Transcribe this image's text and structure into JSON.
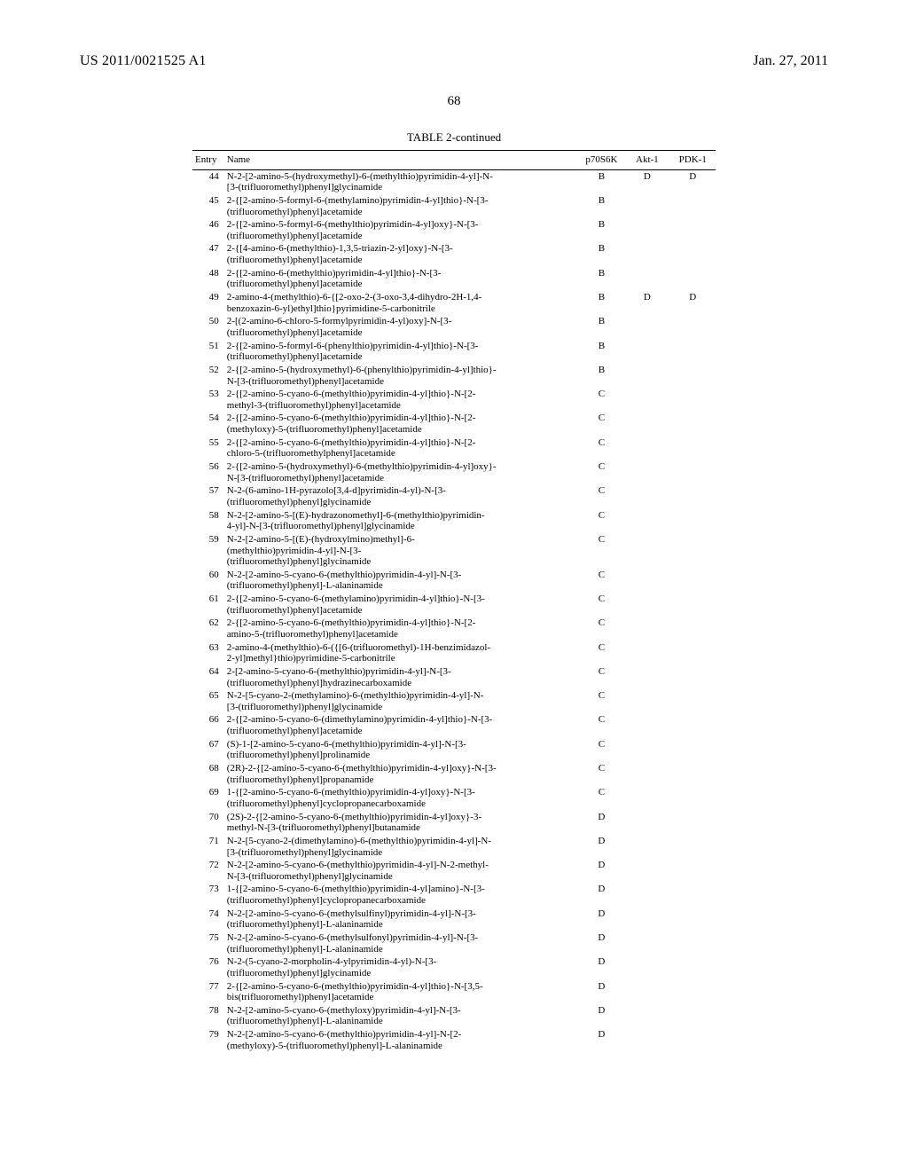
{
  "header": {
    "pub_num": "US 2011/0021525 A1",
    "pub_date": "Jan. 27, 2011"
  },
  "page_number": "68",
  "table": {
    "title": "TABLE 2-continued",
    "columns": [
      "Entry",
      "Name",
      "p70S6K",
      "Akt-1",
      "PDK-1"
    ],
    "rows": [
      {
        "entry": "44",
        "name": [
          "N-2-[2-amino-5-(hydroxymethyl)-6-(methylthio)pyrimidin-4-yl]-N-",
          "[3-(trifluoromethyl)phenyl]glycinamide"
        ],
        "p70s6k": "B",
        "akt1": "D",
        "pdk1": "D"
      },
      {
        "entry": "45",
        "name": [
          "2-{[2-amino-5-formyl-6-(methylamino)pyrimidin-4-yl]thio}-N-[3-",
          "(trifluoromethyl)phenyl]acetamide"
        ],
        "p70s6k": "B",
        "akt1": "",
        "pdk1": ""
      },
      {
        "entry": "46",
        "name": [
          "2-{[2-amino-5-formyl-6-(methylthio)pyrimidin-4-yl]oxy}-N-[3-",
          "(trifluoromethyl)phenyl]acetamide"
        ],
        "p70s6k": "B",
        "akt1": "",
        "pdk1": ""
      },
      {
        "entry": "47",
        "name": [
          "2-{[4-amino-6-(methylthio)-1,3,5-triazin-2-yl]oxy}-N-[3-",
          "(trifluoromethyl)phenyl]acetamide"
        ],
        "p70s6k": "B",
        "akt1": "",
        "pdk1": ""
      },
      {
        "entry": "48",
        "name": [
          "2-{[2-amino-6-(methylthio)pyrimidin-4-yl]thio}-N-[3-",
          "(trifluoromethyl)phenyl]acetamide"
        ],
        "p70s6k": "B",
        "akt1": "",
        "pdk1": ""
      },
      {
        "entry": "49",
        "name": [
          "2-amino-4-(methylthio)-6-{[2-oxo-2-(3-oxo-3,4-dihydro-2H-1,4-",
          "benzoxazin-6-yl)ethyl]thio}pyrimidine-5-carbonitrile"
        ],
        "p70s6k": "B",
        "akt1": "D",
        "pdk1": "D"
      },
      {
        "entry": "50",
        "name": [
          "2-[(2-amino-6-chloro-5-formylpyrimidin-4-yl)oxy]-N-[3-",
          "(trifluoromethyl)phenyl]acetamide"
        ],
        "p70s6k": "B",
        "akt1": "",
        "pdk1": ""
      },
      {
        "entry": "51",
        "name": [
          "2-{[2-amino-5-formyl-6-(phenylthio)pyrimidin-4-yl]thio}-N-[3-",
          "(trifluoromethyl)phenyl]acetamide"
        ],
        "p70s6k": "B",
        "akt1": "",
        "pdk1": ""
      },
      {
        "entry": "52",
        "name": [
          "2-{[2-amino-5-(hydroxymethyl)-6-(phenylthio)pyrimidin-4-yl]thio}-",
          "N-[3-(trifluoromethyl)phenyl]acetamide"
        ],
        "p70s6k": "B",
        "akt1": "",
        "pdk1": ""
      },
      {
        "entry": "53",
        "name": [
          "2-{[2-amino-5-cyano-6-(methylthio)pyrimidin-4-yl]thio}-N-[2-",
          "methyl-3-(trifluoromethyl)phenyl]acetamide"
        ],
        "p70s6k": "C",
        "akt1": "",
        "pdk1": ""
      },
      {
        "entry": "54",
        "name": [
          "2-{[2-amino-5-cyano-6-(methylthio)pyrimidin-4-yl]thio}-N-[2-",
          "(methyloxy)-5-(trifluoromethyl)phenyl]acetamide"
        ],
        "p70s6k": "C",
        "akt1": "",
        "pdk1": ""
      },
      {
        "entry": "55",
        "name": [
          "2-{[2-amino-5-cyano-6-(methylthio)pyrimidin-4-yl]thio}-N-[2-",
          "chloro-5-(trifluoromethylphenyl]acetamide"
        ],
        "p70s6k": "C",
        "akt1": "",
        "pdk1": ""
      },
      {
        "entry": "56",
        "name": [
          "2-{[2-amino-5-(hydroxymethyl)-6-(methylthio)pyrimidin-4-yl]oxy}-",
          "N-[3-(trifluoromethyl)phenyl]acetamide"
        ],
        "p70s6k": "C",
        "akt1": "",
        "pdk1": ""
      },
      {
        "entry": "57",
        "name": [
          "N-2-(6-amino-1H-pyrazolo[3,4-d]pyrimidin-4-yl)-N-[3-",
          "(trifluoromethyl)phenyl]glycinamide"
        ],
        "p70s6k": "C",
        "akt1": "",
        "pdk1": ""
      },
      {
        "entry": "58",
        "name": [
          "N-2-[2-amino-5-[(E)-hydrazonomethyl]-6-(methylthio)pyrimidin-",
          "4-yl]-N-[3-(trifluoromethyl)phenyl]glycinamide"
        ],
        "p70s6k": "C",
        "akt1": "",
        "pdk1": ""
      },
      {
        "entry": "59",
        "name": [
          "N-2-[2-amino-5-[(E)-(hydroxylmino)methyl]-6-",
          "(methylthio)pyrimidin-4-yl]-N-[3-",
          "(trifluoromethyl)phenyl]glycinamide"
        ],
        "p70s6k": "C",
        "akt1": "",
        "pdk1": ""
      },
      {
        "entry": "60",
        "name": [
          "N-2-[2-amino-5-cyano-6-(methylthio)pyrimidin-4-yl]-N-[3-",
          "(trifluoromethyl)phenyl]-L-alaninamide"
        ],
        "p70s6k": "C",
        "akt1": "",
        "pdk1": ""
      },
      {
        "entry": "61",
        "name": [
          "2-{[2-amino-5-cyano-6-(methylamino)pyrimidin-4-yl]thio}-N-[3-",
          "(trifluoromethyl)phenyl]acetamide"
        ],
        "p70s6k": "C",
        "akt1": "",
        "pdk1": ""
      },
      {
        "entry": "62",
        "name": [
          "2-{[2-amino-5-cyano-6-(methylthio)pyrimidin-4-yl]thio}-N-[2-",
          "amino-5-(trifluoromethyl)phenyl]acetamide"
        ],
        "p70s6k": "C",
        "akt1": "",
        "pdk1": ""
      },
      {
        "entry": "63",
        "name": [
          "2-amino-4-(methylthio)-6-({[6-(trifluoromethyl)-1H-benzimidazol-",
          "2-yl]methyl}thio)pyrimidine-5-carbonitrile"
        ],
        "p70s6k": "C",
        "akt1": "",
        "pdk1": ""
      },
      {
        "entry": "64",
        "name": [
          "2-[2-amino-5-cyano-6-(methylthio)pyrimidin-4-yl]-N-[3-",
          "(trifluoromethyl)phenyl]hydrazinecarboxamide"
        ],
        "p70s6k": "C",
        "akt1": "",
        "pdk1": ""
      },
      {
        "entry": "65",
        "name": [
          "N-2-[5-cyano-2-(methylamino)-6-(methylthio)pyrimidin-4-yl]-N-",
          "[3-(trifluoromethyl)phenyl]glycinamide"
        ],
        "p70s6k": "C",
        "akt1": "",
        "pdk1": ""
      },
      {
        "entry": "66",
        "name": [
          "2-{[2-amino-5-cyano-6-(dimethylamino)pyrimidin-4-yl]thio}-N-[3-",
          "(trifluoromethyl)phenyl]acetamide"
        ],
        "p70s6k": "C",
        "akt1": "",
        "pdk1": ""
      },
      {
        "entry": "67",
        "name": [
          "(S)-1-[2-amino-5-cyano-6-(methylthio)pyrimidin-4-yl]-N-[3-",
          "(trifluoromethyl)phenyl]prolinamide"
        ],
        "p70s6k": "C",
        "akt1": "",
        "pdk1": ""
      },
      {
        "entry": "68",
        "name": [
          "(2R)-2-{[2-amino-5-cyano-6-(methylthio)pyrimidin-4-yl]oxy}-N-[3-",
          "(trifluoromethyl)phenyl]propanamide"
        ],
        "p70s6k": "C",
        "akt1": "",
        "pdk1": ""
      },
      {
        "entry": "69",
        "name": [
          "1-{[2-amino-5-cyano-6-(methylthio)pyrimidin-4-yl]oxy}-N-[3-",
          "(trifluoromethyl)phenyl]cyclopropanecarboxamide"
        ],
        "p70s6k": "C",
        "akt1": "",
        "pdk1": ""
      },
      {
        "entry": "70",
        "name": [
          "(2S)-2-{[2-amino-5-cyano-6-(methylthio)pyrimidin-4-yl]oxy}-3-",
          "methyl-N-[3-(trifluoromethyl)phenyl]butanamide"
        ],
        "p70s6k": "D",
        "akt1": "",
        "pdk1": ""
      },
      {
        "entry": "71",
        "name": [
          "N-2-[5-cyano-2-(dimethylamino)-6-(methylthio)pyrimidin-4-yl]-N-",
          "[3-(trifluoromethyl)phenyl]glycinamide"
        ],
        "p70s6k": "D",
        "akt1": "",
        "pdk1": ""
      },
      {
        "entry": "72",
        "name": [
          "N-2-[2-amino-5-cyano-6-(methylthio)pyrimidin-4-yl]-N-2-methyl-",
          "N-[3-(trifluoromethyl)phenyl]glycinamide"
        ],
        "p70s6k": "D",
        "akt1": "",
        "pdk1": ""
      },
      {
        "entry": "73",
        "name": [
          "1-{[2-amino-5-cyano-6-(methylthio)pyrimidin-4-yl]amino}-N-[3-",
          "(trifluoromethyl)phenyl]cyclopropanecarboxamide"
        ],
        "p70s6k": "D",
        "akt1": "",
        "pdk1": ""
      },
      {
        "entry": "74",
        "name": [
          "N-2-[2-amino-5-cyano-6-(methylsulfinyl)pyrimidin-4-yl]-N-[3-",
          "(trifluoromethyl)phenyl]-L-alaninamide"
        ],
        "p70s6k": "D",
        "akt1": "",
        "pdk1": ""
      },
      {
        "entry": "75",
        "name": [
          "N-2-[2-amino-5-cyano-6-(methylsulfonyl)pyrimidin-4-yl]-N-[3-",
          "(trifluoromethyl)phenyl]-L-alaninamide"
        ],
        "p70s6k": "D",
        "akt1": "",
        "pdk1": ""
      },
      {
        "entry": "76",
        "name": [
          "N-2-(5-cyano-2-morpholin-4-ylpyrimidin-4-yl)-N-[3-",
          "(trifluoromethyl)phenyl]glycinamide"
        ],
        "p70s6k": "D",
        "akt1": "",
        "pdk1": ""
      },
      {
        "entry": "77",
        "name": [
          "2-{[2-amino-5-cyano-6-(methylthio)pyrimidin-4-yl]thio}-N-[3,5-",
          "bis(trifluoromethyl)phenyl]acetamide"
        ],
        "p70s6k": "D",
        "akt1": "",
        "pdk1": ""
      },
      {
        "entry": "78",
        "name": [
          "N-2-[2-amino-5-cyano-6-(methyloxy)pyrimidin-4-yl]-N-[3-",
          "(trifluoromethyl)phenyl]-L-alaninamide"
        ],
        "p70s6k": "D",
        "akt1": "",
        "pdk1": ""
      },
      {
        "entry": "79",
        "name": [
          "N-2-[2-amino-5-cyano-6-(methylthio)pyrimidin-4-yl]-N-[2-",
          "(methyloxy)-5-(trifluoromethyl)phenyl]-L-alaninamide"
        ],
        "p70s6k": "D",
        "akt1": "",
        "pdk1": ""
      }
    ]
  }
}
